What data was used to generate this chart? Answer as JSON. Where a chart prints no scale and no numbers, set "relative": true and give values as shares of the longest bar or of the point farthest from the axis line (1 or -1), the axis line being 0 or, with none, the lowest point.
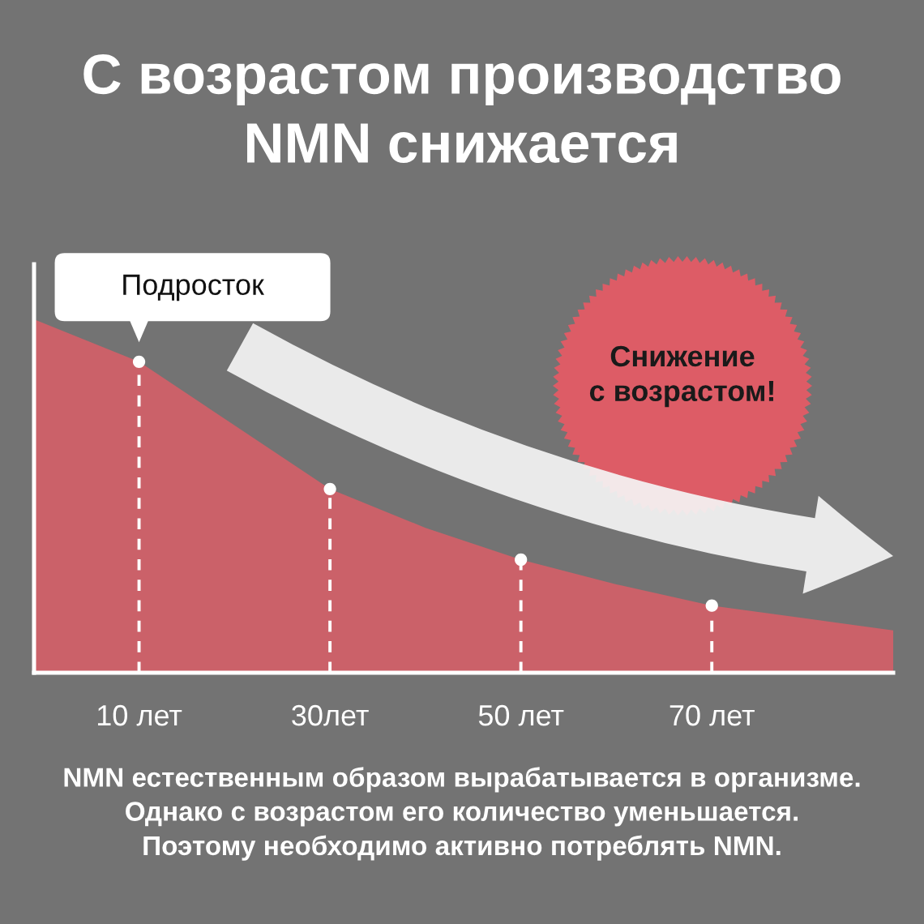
{
  "chart_data": {
    "type": "area",
    "title": "С возрастом производство\nNMN снижается",
    "relative": true,
    "xlim": [
      -1,
      89
    ],
    "xticks": [
      {
        "value": 10,
        "label": "10 лет"
      },
      {
        "value": 30,
        "label": "30лет"
      },
      {
        "value": 50,
        "label": "50 лет"
      },
      {
        "value": 70,
        "label": "70 лет"
      }
    ],
    "series": [
      {
        "color": "#cb6169",
        "x": [
          -1,
          10,
          20,
          30,
          40,
          50,
          60,
          70,
          89
        ],
        "values": [
          1.0,
          0.88,
          0.7,
          0.52,
          0.41,
          0.32,
          0.25,
          0.19,
          0.12
        ]
      },
      {
        "type": "lollipop",
        "color": "#ffffff",
        "x": [
          10,
          30,
          50,
          70
        ],
        "values": [
          0.88,
          0.52,
          0.32,
          0.19
        ],
        "marker": "circle",
        "line_style": "dashed"
      }
    ],
    "annotations": [
      {
        "text": "Подросток",
        "x": 10,
        "y": 0.88
      },
      "Снижение\nс возрастом!",
      "NMN естественным образом вырабатывается в организме.\nОднако с возрастом его количество уменьшается.\nПоэтому необходимо активно потреблять NMN."
    ]
  }
}
